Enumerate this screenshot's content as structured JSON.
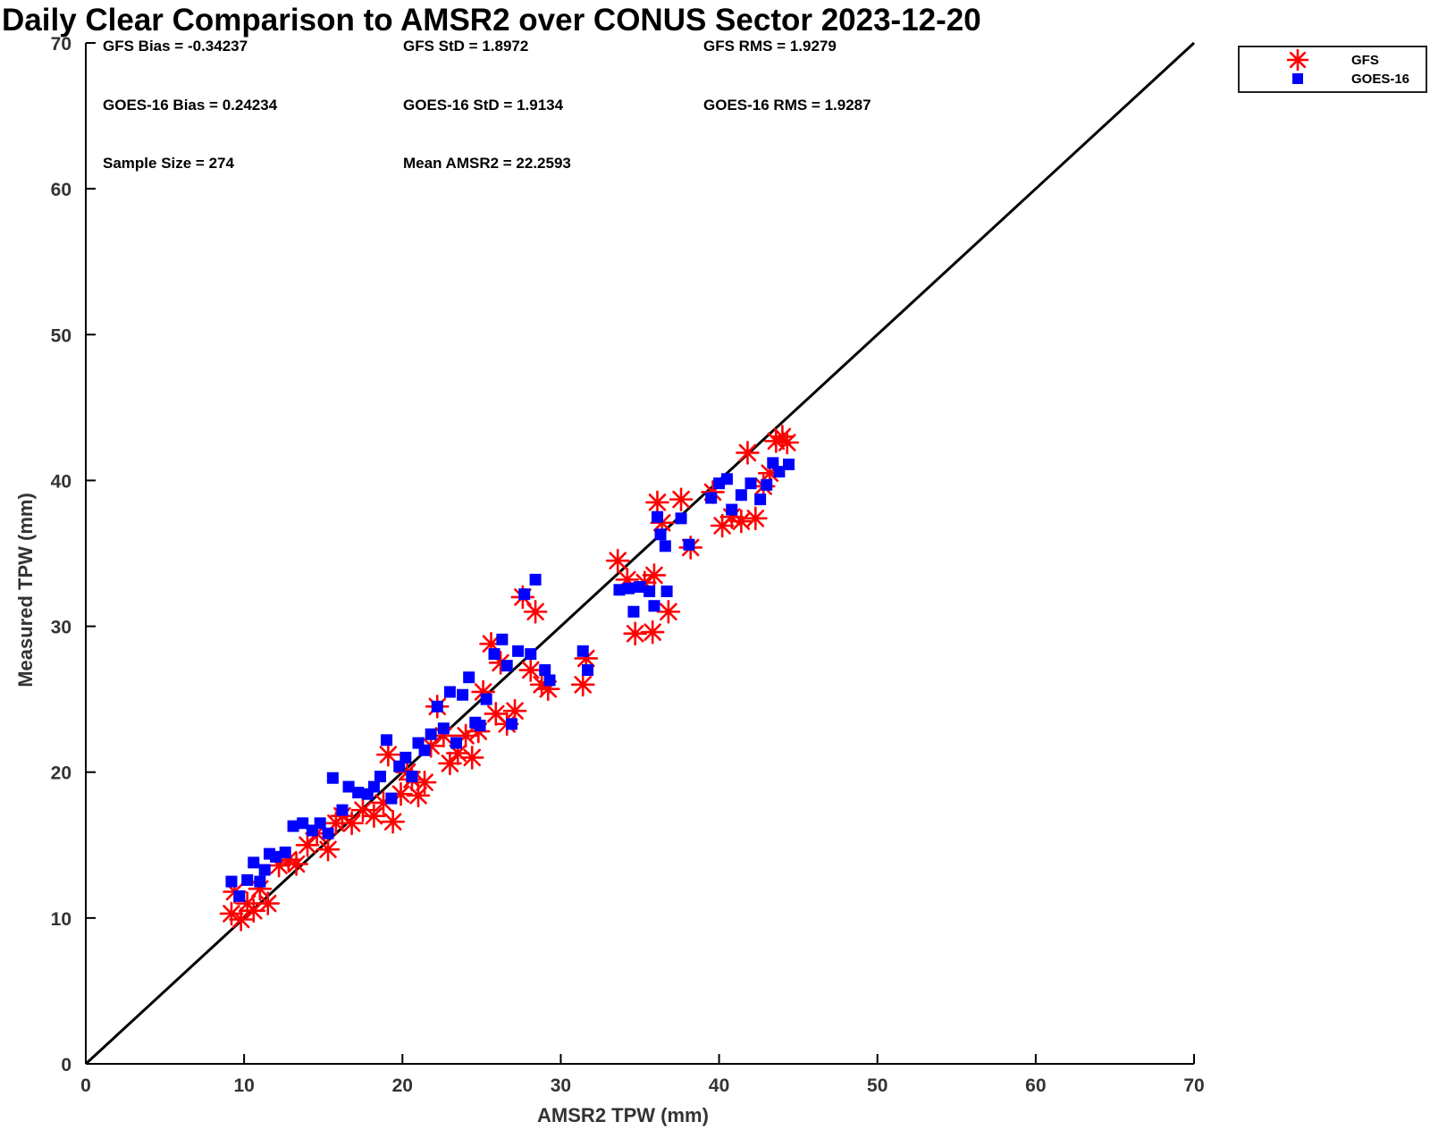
{
  "chart_data": {
    "type": "scatter",
    "title": "Daily Clear Comparison to AMSR2 over CONUS Sector 2023-12-20",
    "xlabel": "AMSR2 TPW (mm)",
    "ylabel": "Measured TPW (mm)",
    "xlim": [
      0,
      70
    ],
    "ylim": [
      0,
      70
    ],
    "xticks": [
      "0",
      "10",
      "20",
      "30",
      "40",
      "50",
      "60",
      "70"
    ],
    "yticks": [
      "0",
      "10",
      "20",
      "30",
      "40",
      "50",
      "60",
      "70"
    ],
    "grid": false,
    "legend_position": "outside-top-right",
    "reference_line": "1:1",
    "stats": {
      "gfs_bias": "GFS Bias = -0.34237",
      "gfs_std": "GFS StD = 1.8972",
      "gfs_rms": "GFS RMS = 1.9279",
      "goes_bias": "GOES-16 Bias = 0.24234",
      "goes_std": "GOES-16 StD = 1.9134",
      "goes_rms": "GOES-16 RMS = 1.9287",
      "sample_size": "Sample Size = 274",
      "mean_amsr2": "Mean AMSR2 = 22.2593"
    },
    "series": [
      {
        "name": "GFS",
        "marker": "asterisk",
        "color": "#ff0000",
        "points": [
          [
            9.2,
            10.3
          ],
          [
            9.4,
            11.8
          ],
          [
            9.8,
            9.9
          ],
          [
            10.2,
            11.0
          ],
          [
            10.6,
            10.5
          ],
          [
            11.0,
            12.0
          ],
          [
            11.5,
            11.0
          ],
          [
            12.2,
            13.6
          ],
          [
            12.8,
            14.0
          ],
          [
            13.3,
            13.7
          ],
          [
            14.0,
            15.0
          ],
          [
            14.6,
            15.8
          ],
          [
            15.3,
            14.7
          ],
          [
            15.8,
            16.5
          ],
          [
            16.2,
            17.0
          ],
          [
            16.8,
            16.5
          ],
          [
            17.5,
            17.4
          ],
          [
            18.2,
            17.0
          ],
          [
            18.8,
            17.9
          ],
          [
            19.1,
            21.2
          ],
          [
            19.4,
            16.6
          ],
          [
            19.9,
            18.5
          ],
          [
            20.3,
            20.0
          ],
          [
            20.6,
            19.5
          ],
          [
            21.0,
            18.4
          ],
          [
            21.4,
            19.3
          ],
          [
            21.8,
            21.8
          ],
          [
            22.2,
            24.5
          ],
          [
            22.6,
            22.5
          ],
          [
            23.0,
            20.6
          ],
          [
            23.5,
            21.3
          ],
          [
            24.0,
            22.5
          ],
          [
            24.4,
            21.0
          ],
          [
            24.8,
            22.8
          ],
          [
            25.1,
            25.5
          ],
          [
            25.6,
            28.8
          ],
          [
            25.9,
            24.0
          ],
          [
            26.2,
            27.5
          ],
          [
            26.6,
            23.3
          ],
          [
            27.1,
            24.2
          ],
          [
            27.6,
            32.0
          ],
          [
            28.1,
            27.0
          ],
          [
            28.4,
            31.0
          ],
          [
            28.8,
            26.0
          ],
          [
            29.2,
            25.7
          ],
          [
            31.4,
            26.0
          ],
          [
            31.6,
            27.8
          ],
          [
            33.6,
            34.5
          ],
          [
            34.2,
            33.2
          ],
          [
            34.7,
            29.5
          ],
          [
            35.3,
            33.0
          ],
          [
            35.8,
            29.6
          ],
          [
            35.9,
            33.5
          ],
          [
            36.1,
            38.5
          ],
          [
            36.4,
            37.1
          ],
          [
            36.8,
            31.0
          ],
          [
            37.6,
            38.7
          ],
          [
            38.2,
            35.4
          ],
          [
            39.6,
            39.2
          ],
          [
            40.2,
            36.9
          ],
          [
            40.8,
            37.5
          ],
          [
            41.4,
            37.2
          ],
          [
            41.8,
            41.9
          ],
          [
            42.3,
            37.4
          ],
          [
            42.8,
            39.6
          ],
          [
            43.2,
            40.5
          ],
          [
            43.6,
            42.7
          ],
          [
            44.0,
            43.0
          ],
          [
            44.3,
            42.6
          ]
        ]
      },
      {
        "name": "GOES-16",
        "marker": "square",
        "color": "#0000ff",
        "points": [
          [
            9.2,
            12.5
          ],
          [
            9.7,
            11.5
          ],
          [
            10.2,
            12.6
          ],
          [
            10.6,
            13.8
          ],
          [
            11.0,
            12.5
          ],
          [
            11.3,
            13.3
          ],
          [
            11.6,
            14.4
          ],
          [
            12.0,
            14.2
          ],
          [
            12.6,
            14.5
          ],
          [
            13.1,
            16.3
          ],
          [
            13.7,
            16.5
          ],
          [
            14.3,
            16.0
          ],
          [
            14.8,
            16.5
          ],
          [
            15.3,
            15.8
          ],
          [
            15.6,
            19.6
          ],
          [
            16.2,
            17.4
          ],
          [
            16.6,
            19.0
          ],
          [
            17.2,
            18.6
          ],
          [
            17.8,
            18.5
          ],
          [
            18.2,
            19.0
          ],
          [
            18.6,
            19.7
          ],
          [
            19.0,
            22.2
          ],
          [
            19.3,
            18.2
          ],
          [
            19.8,
            20.4
          ],
          [
            20.2,
            21.0
          ],
          [
            20.6,
            19.7
          ],
          [
            21.0,
            22.0
          ],
          [
            21.4,
            21.5
          ],
          [
            21.8,
            22.6
          ],
          [
            22.2,
            24.5
          ],
          [
            22.6,
            23.0
          ],
          [
            23.0,
            25.5
          ],
          [
            23.4,
            22.0
          ],
          [
            23.8,
            25.3
          ],
          [
            24.2,
            26.5
          ],
          [
            24.6,
            23.4
          ],
          [
            24.9,
            23.2
          ],
          [
            25.3,
            25.0
          ],
          [
            25.8,
            28.1
          ],
          [
            26.3,
            29.1
          ],
          [
            26.6,
            27.3
          ],
          [
            26.9,
            23.3
          ],
          [
            27.3,
            28.3
          ],
          [
            27.7,
            32.2
          ],
          [
            28.1,
            28.1
          ],
          [
            28.4,
            33.2
          ],
          [
            29.0,
            27.0
          ],
          [
            29.3,
            26.3
          ],
          [
            31.4,
            28.3
          ],
          [
            31.7,
            27.0
          ],
          [
            33.7,
            32.5
          ],
          [
            34.3,
            32.6
          ],
          [
            34.6,
            31.0
          ],
          [
            35.0,
            32.7
          ],
          [
            35.6,
            32.4
          ],
          [
            35.9,
            31.4
          ],
          [
            36.1,
            37.5
          ],
          [
            36.3,
            36.3
          ],
          [
            36.6,
            35.5
          ],
          [
            36.7,
            32.4
          ],
          [
            37.6,
            37.4
          ],
          [
            38.1,
            35.6
          ],
          [
            39.5,
            38.8
          ],
          [
            40.0,
            39.8
          ],
          [
            40.5,
            40.1
          ],
          [
            40.8,
            38.0
          ],
          [
            41.4,
            39.0
          ],
          [
            42.0,
            39.8
          ],
          [
            42.6,
            38.7
          ],
          [
            43.0,
            39.7
          ],
          [
            43.4,
            41.2
          ],
          [
            43.8,
            40.6
          ],
          [
            44.4,
            41.1
          ]
        ]
      }
    ]
  }
}
